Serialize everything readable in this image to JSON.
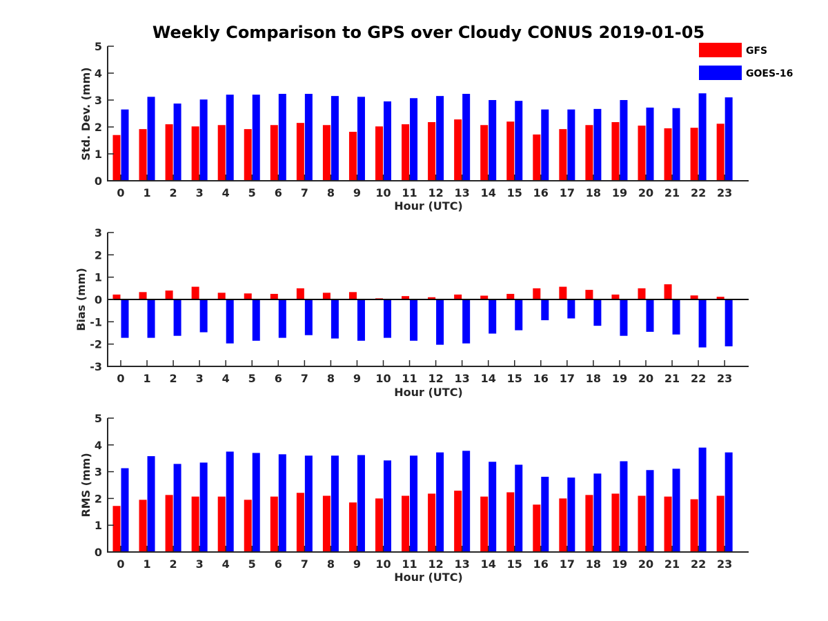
{
  "title": "Weekly Comparison to GPS over Cloudy CONUS 2019-01-05",
  "legend": {
    "placement": "top-right",
    "entries": [
      {
        "name": "GFS",
        "color": "#ff0000"
      },
      {
        "name": "GOES-16",
        "color": "#0000ff"
      }
    ]
  },
  "chart_data": [
    {
      "type": "bar",
      "ylabel": "Std. Dev. (mm)",
      "xlabel": "Hour (UTC)",
      "ylim": [
        0,
        5
      ],
      "yticks": [
        0,
        1,
        2,
        3,
        4,
        5
      ],
      "categories": [
        "0",
        "1",
        "2",
        "3",
        "4",
        "5",
        "6",
        "7",
        "8",
        "9",
        "10",
        "11",
        "12",
        "13",
        "14",
        "15",
        "16",
        "17",
        "18",
        "19",
        "20",
        "21",
        "22",
        "23"
      ],
      "series": [
        {
          "name": "GFS",
          "color": "#ff0000",
          "values": [
            1.7,
            1.92,
            2.1,
            2.02,
            2.07,
            1.92,
            2.07,
            2.15,
            2.07,
            1.82,
            2.02,
            2.1,
            2.18,
            2.28,
            2.07,
            2.2,
            1.72,
            1.92,
            2.07,
            2.18,
            2.05,
            1.95,
            1.97,
            2.12
          ]
        },
        {
          "name": "GOES-16",
          "color": "#0000ff",
          "values": [
            2.65,
            3.12,
            2.87,
            3.02,
            3.2,
            3.2,
            3.23,
            3.23,
            3.15,
            3.12,
            2.95,
            3.07,
            3.15,
            3.23,
            3.0,
            2.97,
            2.65,
            2.65,
            2.67,
            3.0,
            2.72,
            2.7,
            3.25,
            3.1
          ]
        }
      ]
    },
    {
      "type": "bar",
      "ylabel": "Bias (mm)",
      "xlabel": "Hour (UTC)",
      "ylim": [
        -3,
        3
      ],
      "yticks": [
        -3,
        -2,
        -1,
        0,
        1,
        2,
        3
      ],
      "categories": [
        "0",
        "1",
        "2",
        "3",
        "4",
        "5",
        "6",
        "7",
        "8",
        "9",
        "10",
        "11",
        "12",
        "13",
        "14",
        "15",
        "16",
        "17",
        "18",
        "19",
        "20",
        "21",
        "22",
        "23"
      ],
      "series": [
        {
          "name": "GFS",
          "color": "#ff0000",
          "values": [
            0.22,
            0.33,
            0.4,
            0.57,
            0.3,
            0.27,
            0.25,
            0.5,
            0.3,
            0.33,
            0.05,
            0.15,
            0.1,
            0.22,
            0.17,
            0.25,
            0.5,
            0.57,
            0.43,
            0.22,
            0.5,
            0.68,
            0.18,
            0.12
          ]
        },
        {
          "name": "GOES-16",
          "color": "#0000ff",
          "values": [
            -1.72,
            -1.72,
            -1.63,
            -1.47,
            -1.97,
            -1.85,
            -1.72,
            -1.6,
            -1.75,
            -1.85,
            -1.72,
            -1.85,
            -2.03,
            -1.97,
            -1.53,
            -1.38,
            -0.93,
            -0.85,
            -1.18,
            -1.63,
            -1.45,
            -1.57,
            -2.15,
            -2.1
          ]
        }
      ]
    },
    {
      "type": "bar",
      "ylabel": "RMS (mm)",
      "xlabel": "Hour (UTC)",
      "ylim": [
        0,
        5
      ],
      "yticks": [
        0,
        1,
        2,
        3,
        4,
        5
      ],
      "categories": [
        "0",
        "1",
        "2",
        "3",
        "4",
        "5",
        "6",
        "7",
        "8",
        "9",
        "10",
        "11",
        "12",
        "13",
        "14",
        "15",
        "16",
        "17",
        "18",
        "19",
        "20",
        "21",
        "22",
        "23"
      ],
      "series": [
        {
          "name": "GFS",
          "color": "#ff0000",
          "values": [
            1.72,
            1.95,
            2.13,
            2.07,
            2.07,
            1.95,
            2.07,
            2.21,
            2.1,
            1.85,
            2.0,
            2.1,
            2.18,
            2.29,
            2.07,
            2.23,
            1.77,
            2.0,
            2.13,
            2.18,
            2.1,
            2.07,
            1.97,
            2.1
          ]
        },
        {
          "name": "GOES-16",
          "color": "#0000ff",
          "values": [
            3.13,
            3.58,
            3.29,
            3.34,
            3.75,
            3.7,
            3.65,
            3.6,
            3.6,
            3.62,
            3.42,
            3.6,
            3.72,
            3.78,
            3.37,
            3.26,
            2.81,
            2.78,
            2.93,
            3.39,
            3.06,
            3.11,
            3.9,
            3.72
          ]
        }
      ]
    }
  ]
}
